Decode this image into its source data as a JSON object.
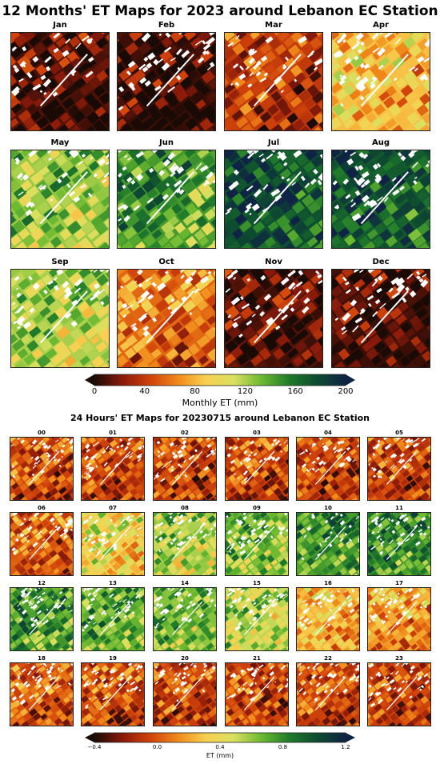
{
  "monthly": {
    "title": "12 Months' ET Maps for 2023 around Lebanon EC Station",
    "panels": [
      {
        "label": "Jan",
        "base": "#b83a12",
        "fill": 0.05
      },
      {
        "label": "Feb",
        "base": "#a92e12",
        "fill": 0.03
      },
      {
        "label": "Mar",
        "base": "#e06212",
        "fill": 0.2
      },
      {
        "label": "Apr",
        "base": "#f0a030",
        "fill": 0.42
      },
      {
        "label": "May",
        "base": "#b8d040",
        "fill": 0.62
      },
      {
        "label": "Jun",
        "base": "#5cb030",
        "fill": 0.72
      },
      {
        "label": "Jul",
        "base": "#1f6a2a",
        "fill": 0.88
      },
      {
        "label": "Aug",
        "base": "#2b7a2c",
        "fill": 0.85
      },
      {
        "label": "Sep",
        "base": "#9cc838",
        "fill": 0.6
      },
      {
        "label": "Oct",
        "base": "#e47818",
        "fill": 0.28
      },
      {
        "label": "Nov",
        "base": "#b23612",
        "fill": 0.06
      },
      {
        "label": "Dec",
        "base": "#a82d12",
        "fill": 0.03
      }
    ],
    "colorbar": {
      "label": "Monthly ET (mm)",
      "ticks": [
        "0",
        "40",
        "80",
        "120",
        "160",
        "200"
      ]
    }
  },
  "hourly": {
    "title": "24 Hours' ET Maps for 20230715 around Lebanon EC Station",
    "panels": [
      {
        "label": "00",
        "fill": 0.22
      },
      {
        "label": "01",
        "fill": 0.22
      },
      {
        "label": "02",
        "fill": 0.22
      },
      {
        "label": "03",
        "fill": 0.22
      },
      {
        "label": "04",
        "fill": 0.22
      },
      {
        "label": "05",
        "fill": 0.22
      },
      {
        "label": "06",
        "fill": 0.26
      },
      {
        "label": "07",
        "fill": 0.48
      },
      {
        "label": "08",
        "fill": 0.6
      },
      {
        "label": "09",
        "fill": 0.66
      },
      {
        "label": "10",
        "fill": 0.72
      },
      {
        "label": "11",
        "fill": 0.74
      },
      {
        "label": "12",
        "fill": 0.72
      },
      {
        "label": "13",
        "fill": 0.68
      },
      {
        "label": "14",
        "fill": 0.64
      },
      {
        "label": "15",
        "fill": 0.58
      },
      {
        "label": "16",
        "fill": 0.4
      },
      {
        "label": "17",
        "fill": 0.36
      },
      {
        "label": "18",
        "fill": 0.25
      },
      {
        "label": "19",
        "fill": 0.23
      },
      {
        "label": "20",
        "fill": 0.22
      },
      {
        "label": "21",
        "fill": 0.22
      },
      {
        "label": "22",
        "fill": 0.22
      },
      {
        "label": "23",
        "fill": 0.22
      }
    ],
    "colorbar": {
      "label": "ET (mm)",
      "ticks": [
        "−0.4",
        "0.0",
        "0.4",
        "0.8",
        "1.2"
      ]
    }
  },
  "colors": {
    "colormap": [
      "#1a0a05",
      "#8a1a0a",
      "#d0420a",
      "#f08a1a",
      "#f8d050",
      "#d8e060",
      "#6ab830",
      "#1f7a2a",
      "#0d4a30",
      "#0f2444"
    ]
  }
}
